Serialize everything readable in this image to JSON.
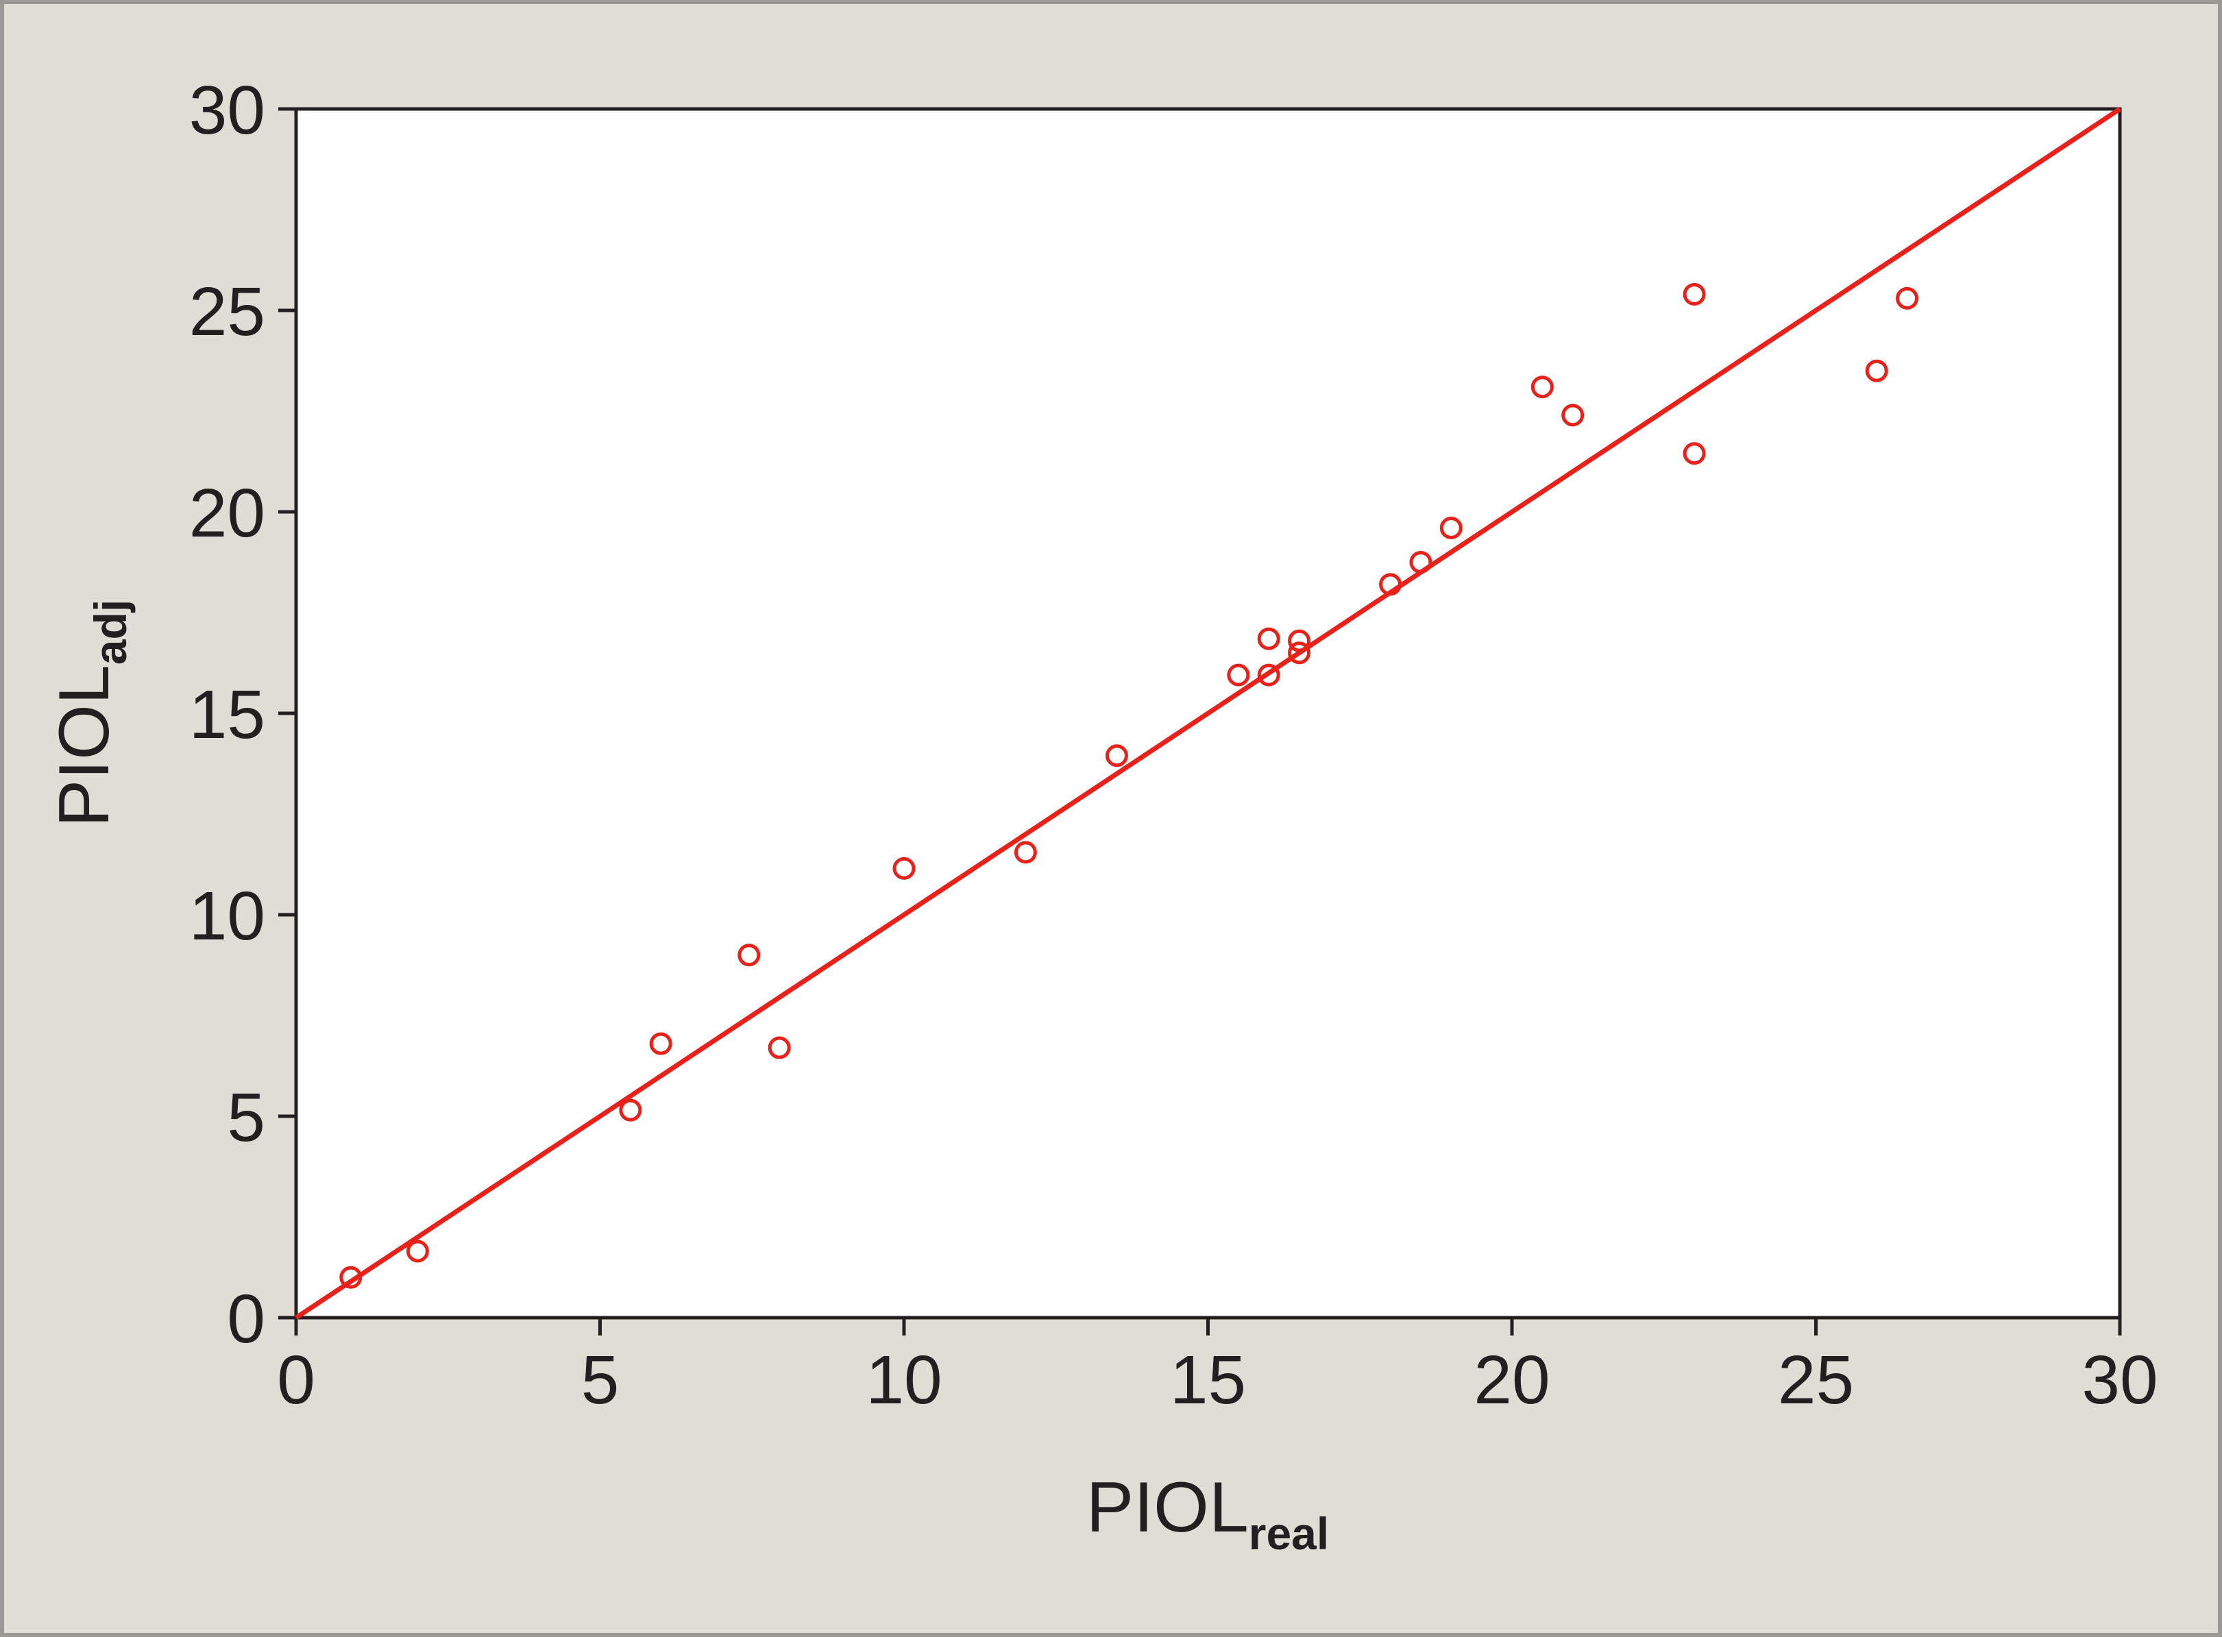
{
  "chart_data": {
    "type": "scatter",
    "x_label": "PIOL",
    "x_label_sub": "real",
    "y_label": "PIOL",
    "y_label_sub": "adj",
    "series": [
      {
        "color": "#e8221b",
        "x": [
          0.9,
          2.0,
          5.5,
          6.0,
          7.45,
          7.95,
          10.0,
          12.0,
          13.5,
          15.5,
          16.0,
          16.0,
          16.5,
          16.5,
          18.0,
          18.5,
          19.0,
          20.5,
          21.0,
          23.0,
          23.0,
          26.0,
          26.5
        ],
        "values": [
          1.0,
          1.65,
          5.15,
          6.8,
          9.0,
          6.7,
          11.15,
          11.55,
          13.95,
          15.95,
          15.95,
          16.85,
          16.5,
          16.8,
          18.2,
          18.75,
          19.6,
          23.1,
          22.4,
          25.4,
          21.45,
          23.5,
          25.3
        ]
      }
    ],
    "reference_line": {
      "x": [
        0,
        30
      ],
      "y": [
        0,
        30
      ],
      "color": "#e8221b"
    },
    "xlim": [
      0,
      30
    ],
    "ylim": [
      0,
      30
    ],
    "xticks": [
      0,
      5,
      10,
      15,
      20,
      25,
      30
    ],
    "yticks": [
      0,
      5,
      10,
      15,
      20,
      25,
      30
    ]
  }
}
